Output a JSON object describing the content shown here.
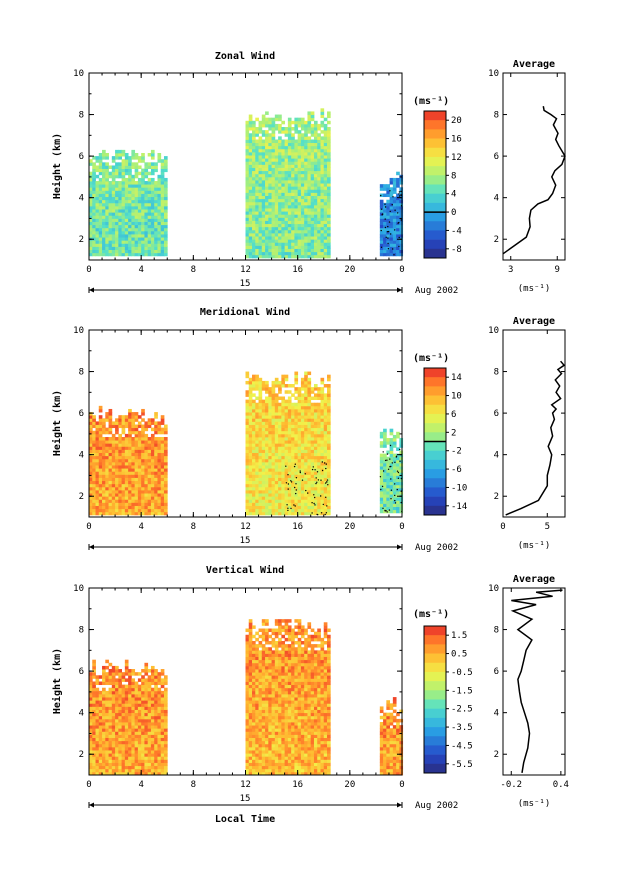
{
  "chart_data": [
    {
      "type": "heatmap",
      "title": "Zonal Wind",
      "ylabel": "Height (km)",
      "xlabel": "",
      "xlim": [
        0,
        24
      ],
      "ylim": [
        1,
        10
      ],
      "x_ticks": [
        "0",
        "4",
        "8",
        "12",
        "16",
        "20",
        "0"
      ],
      "y_ticks": [
        "2",
        "4",
        "6",
        "8",
        "10"
      ],
      "date_label": "15",
      "month_label": "Aug 2002",
      "colorbar": {
        "unit": "(ms⁻¹)",
        "labels": [
          "20",
          "16",
          "12",
          "8",
          "4",
          "0",
          "-4",
          "-8"
        ],
        "min": -10,
        "max": 22,
        "contour_level": 0
      },
      "data_blocks": [
        {
          "x": [
            0,
            6
          ],
          "top": 6.3,
          "bottom": 1.2,
          "mean": 5
        },
        {
          "x": [
            12,
            18.5
          ],
          "top": 8.2,
          "bottom": 1.1,
          "mean": 6
        },
        {
          "x": [
            22.3,
            24
          ],
          "top": 5.2,
          "bottom": 1.2,
          "mean": -3
        }
      ],
      "average_profile": {
        "title": "Average",
        "xlabel": "(ms⁻¹)",
        "x_ticks": [
          "3",
          "9"
        ],
        "xlim": [
          2,
          10
        ],
        "y_ticks": [
          "2",
          "4",
          "6",
          "8",
          "10"
        ],
        "ylim": [
          1,
          10
        ],
        "x": [
          2.0,
          3.5,
          5.0,
          5.5,
          5.4,
          5.6,
          6.5,
          7.8,
          8.4,
          8.8,
          8.3,
          8.7,
          9.6,
          10.0,
          9.2,
          8.8,
          9.1,
          8.5,
          8.9,
          8.2,
          7.3,
          7.2
        ],
        "y": [
          1.3,
          1.7,
          2.1,
          2.6,
          3.0,
          3.4,
          3.7,
          3.9,
          4.2,
          4.6,
          5.0,
          5.3,
          5.6,
          6.0,
          6.5,
          6.8,
          7.1,
          7.5,
          7.8,
          8.0,
          8.2,
          8.4
        ]
      }
    },
    {
      "type": "heatmap",
      "title": "Meridional Wind",
      "ylabel": "Height (km)",
      "xlabel": "",
      "xlim": [
        0,
        24
      ],
      "ylim": [
        1,
        10
      ],
      "x_ticks": [
        "0",
        "4",
        "8",
        "12",
        "16",
        "20",
        "0"
      ],
      "y_ticks": [
        "2",
        "4",
        "6",
        "8",
        "10"
      ],
      "date_label": "15",
      "month_label": "Aug 2002",
      "colorbar": {
        "unit": "(ms⁻¹)",
        "labels": [
          "14",
          "10",
          "6",
          "2",
          "-2",
          "-6",
          "-10",
          "-14"
        ],
        "min": -16,
        "max": 16,
        "contour_level": 0
      },
      "data_blocks": [
        {
          "x": [
            0,
            6
          ],
          "top": 6.3,
          "bottom": 1.1,
          "mean": 10
        },
        {
          "x": [
            12,
            18.5
          ],
          "top": 8.0,
          "bottom": 1.1,
          "mean": 6
        },
        {
          "x": [
            22.3,
            24
          ],
          "top": 5.3,
          "bottom": 1.2,
          "mean": -1
        }
      ],
      "average_profile": {
        "title": "Average",
        "xlabel": "(ms⁻¹)",
        "x_ticks": [
          "0",
          "5"
        ],
        "xlim": [
          0,
          7
        ],
        "y_ticks": [
          "2",
          "4",
          "6",
          "8",
          "10"
        ],
        "ylim": [
          1,
          10
        ],
        "x": [
          0.3,
          2.0,
          4.0,
          5.0,
          5.0,
          5.3,
          5.5,
          5.1,
          5.6,
          5.4,
          5.8,
          5.6,
          6.0,
          5.5,
          6.5,
          6.0,
          6.4,
          5.9,
          6.6,
          6.2,
          6.9,
          6.5
        ],
        "y": [
          1.1,
          1.4,
          1.8,
          2.5,
          3.0,
          3.5,
          4.0,
          4.4,
          4.9,
          5.3,
          5.7,
          6.0,
          6.2,
          6.4,
          6.7,
          7.0,
          7.3,
          7.6,
          7.9,
          8.1,
          8.3,
          8.5
        ]
      }
    },
    {
      "type": "heatmap",
      "title": "Vertical Wind",
      "ylabel": "Height (km)",
      "xlabel": "Local Time",
      "xlim": [
        0,
        24
      ],
      "ylim": [
        1,
        10
      ],
      "x_ticks": [
        "0",
        "4",
        "8",
        "12",
        "16",
        "20",
        "0"
      ],
      "y_ticks": [
        "2",
        "4",
        "6",
        "8",
        "10"
      ],
      "date_label": "15",
      "month_label": "Aug 2002",
      "colorbar": {
        "unit": "(ms⁻¹)",
        "labels": [
          "1.5",
          "0.5",
          "-0.5",
          "-1.5",
          "-2.5",
          "-3.5",
          "-4.5",
          "-5.5"
        ],
        "min": -6,
        "max": 2,
        "contour_level": null
      },
      "data_blocks": [
        {
          "x": [
            0,
            6
          ],
          "top": 6.5,
          "bottom": 1.0,
          "mean": 0.5
        },
        {
          "x": [
            12,
            18.5
          ],
          "top": 8.5,
          "bottom": 1.0,
          "mean": 0.3
        },
        {
          "x": [
            22.3,
            24
          ],
          "top": 4.7,
          "bottom": 1.0,
          "mean": 0.6
        }
      ],
      "average_profile": {
        "title": "Average",
        "xlabel": "(ms⁻¹)",
        "x_ticks": [
          "-0.2",
          "0.4"
        ],
        "xlim": [
          -0.3,
          0.45
        ],
        "y_ticks": [
          "2",
          "4",
          "6",
          "8",
          "10"
        ],
        "ylim": [
          1,
          10
        ],
        "x": [
          -0.07,
          -0.05,
          0.0,
          0.02,
          0.0,
          -0.04,
          -0.08,
          -0.1,
          -0.12,
          -0.08,
          -0.05,
          -0.02,
          0.05,
          -0.12,
          0.05,
          -0.18,
          0.1,
          -0.2,
          0.3,
          0.1,
          0.42
        ],
        "y": [
          1.1,
          1.6,
          2.3,
          3.0,
          3.5,
          4.0,
          4.5,
          5.0,
          5.6,
          6.0,
          6.5,
          7.0,
          7.5,
          8.0,
          8.5,
          8.9,
          9.2,
          9.4,
          9.6,
          9.8,
          9.9
        ]
      }
    }
  ]
}
